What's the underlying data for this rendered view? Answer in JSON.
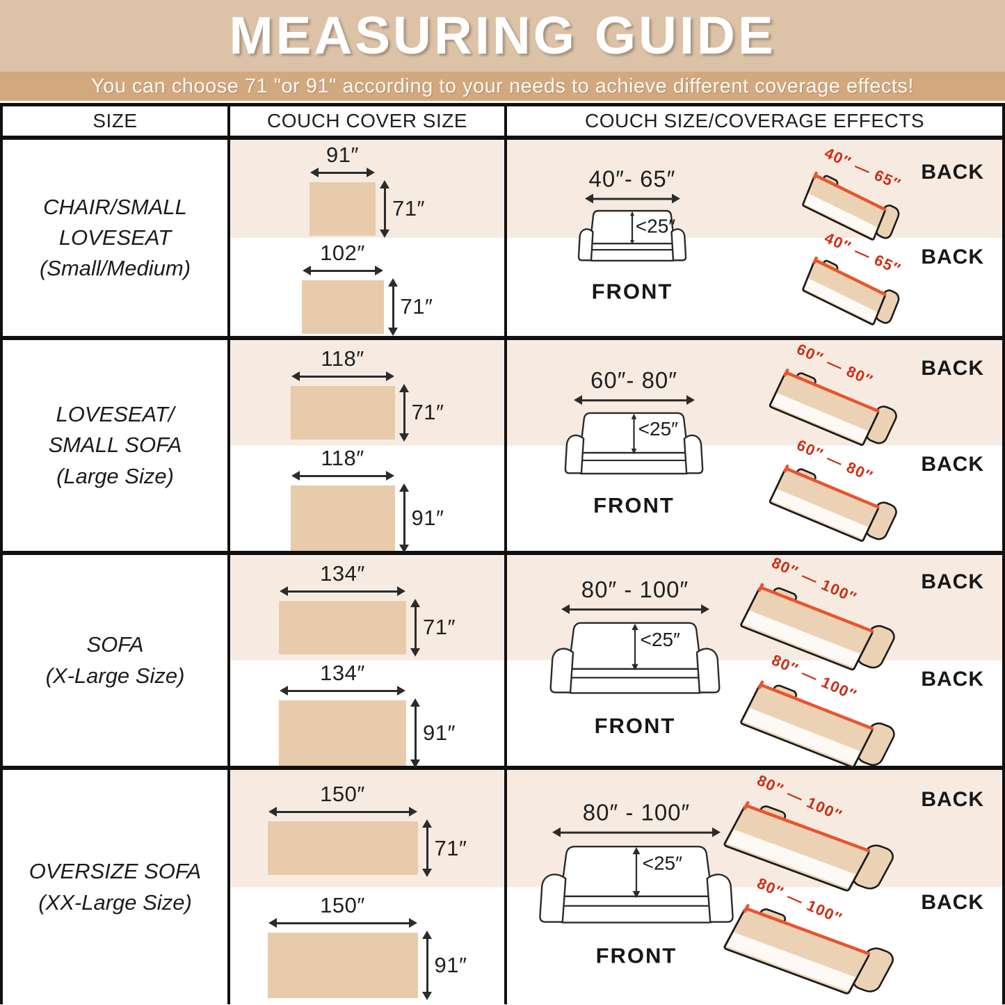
{
  "header": {
    "title": "MEASURING GUIDE",
    "subtitle": "You can choose 71 \"or 91\" according to your needs to achieve different coverage effects!"
  },
  "columns": [
    "SIZE",
    "COUCH COVER SIZE",
    "COUCH SIZE/COVERAGE EFFECTS"
  ],
  "rows": [
    {
      "size_lines": [
        "CHAIR/SMALL",
        "LOVESEAT",
        "(Small/Medium)"
      ],
      "covers": [
        {
          "width_in": 91,
          "height_in": 71,
          "width_label": "91″",
          "height_label": "71″"
        },
        {
          "width_in": 102,
          "height_in": 71,
          "width_label": "102″",
          "height_label": "71″"
        }
      ],
      "front": {
        "range_label": "40″- 65″",
        "depth_label": "<25″",
        "caption": "FRONT"
      },
      "backs": [
        {
          "range_label": "40″ — 65″",
          "caption": "BACK"
        },
        {
          "range_label": "40″ — 65″",
          "caption": "BACK"
        }
      ]
    },
    {
      "size_lines": [
        "LOVESEAT/",
        "SMALL SOFA",
        "(Large Size)"
      ],
      "covers": [
        {
          "width_in": 118,
          "height_in": 71,
          "width_label": "118″",
          "height_label": "71″"
        },
        {
          "width_in": 118,
          "height_in": 91,
          "width_label": "118″",
          "height_label": "91″"
        }
      ],
      "front": {
        "range_label": "60″- 80″",
        "depth_label": "<25″",
        "caption": "FRONT"
      },
      "backs": [
        {
          "range_label": "60″ — 80″",
          "caption": "BACK"
        },
        {
          "range_label": "60″ — 80″",
          "caption": "BACK"
        }
      ]
    },
    {
      "size_lines": [
        "SOFA",
        "(X-Large Size)"
      ],
      "covers": [
        {
          "width_in": 134,
          "height_in": 71,
          "width_label": "134″",
          "height_label": "71″"
        },
        {
          "width_in": 134,
          "height_in": 91,
          "width_label": "134″",
          "height_label": "91″"
        }
      ],
      "front": {
        "range_label": "80″ - 100″",
        "depth_label": "<25″",
        "caption": "FRONT"
      },
      "backs": [
        {
          "range_label": "80″ — 100″",
          "caption": "BACK"
        },
        {
          "range_label": "80″ — 100″",
          "caption": "BACK"
        }
      ]
    },
    {
      "size_lines": [
        "OVERSIZE SOFA",
        "(XX-Large  Size)"
      ],
      "covers": [
        {
          "width_in": 150,
          "height_in": 71,
          "width_label": "150″",
          "height_label": "71″"
        },
        {
          "width_in": 150,
          "height_in": 91,
          "width_label": "150″",
          "height_label": "91″"
        }
      ],
      "front": {
        "range_label": "80″ - 100″",
        "depth_label": "<25″",
        "caption": "FRONT"
      },
      "backs": [
        {
          "range_label": "80″ — 100″",
          "caption": "BACK"
        },
        {
          "range_label": "80″ — 100″",
          "caption": "BACK"
        }
      ]
    }
  ]
}
